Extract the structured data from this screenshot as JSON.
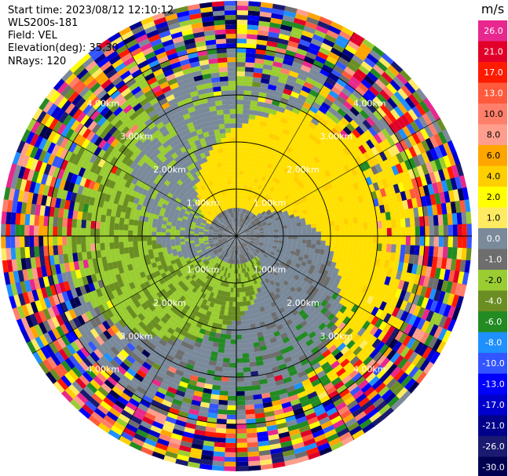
{
  "header": {
    "start_time": "Start time: 2023/08/12 12:10:12",
    "instrument": "WLS200s-181",
    "field": "Field: VEL",
    "elevation": "Elevation(deg): 35.30",
    "nrays": "NRays: 120"
  },
  "colorbar": {
    "unit": "m/s",
    "levels": [
      {
        "label": "26.0",
        "color": "#e8288f"
      },
      {
        "label": "21.0",
        "color": "#e0002a"
      },
      {
        "label": "17.0",
        "color": "#ff1a00"
      },
      {
        "label": "13.0",
        "color": "#ff5a3c"
      },
      {
        "label": "10.0",
        "color": "#ff7f6a"
      },
      {
        "label": "8.0",
        "color": "#ff9e8c"
      },
      {
        "label": "6.0",
        "color": "#ffa500"
      },
      {
        "label": "4.0",
        "color": "#ffcf00"
      },
      {
        "label": "2.0",
        "color": "#ffff00"
      },
      {
        "label": "1.0",
        "color": "#ffea60"
      },
      {
        "label": "0.0",
        "color": "#7a8a9a"
      },
      {
        "label": "-1.0",
        "color": "#6e6e6e"
      },
      {
        "label": "-2.0",
        "color": "#9acd32"
      },
      {
        "label": "-4.0",
        "color": "#6b8e23"
      },
      {
        "label": "-6.0",
        "color": "#228b22"
      },
      {
        "label": "-8.0",
        "color": "#1e90ff"
      },
      {
        "label": "-10.0",
        "color": "#3355ff"
      },
      {
        "label": "-13.0",
        "color": "#0000ff"
      },
      {
        "label": "-17.0",
        "color": "#0000cd"
      },
      {
        "label": "-21.0",
        "color": "#00008b"
      },
      {
        "label": "-26.0",
        "color": "#1a1a70"
      },
      {
        "label": "-30.0",
        "color": "#000050"
      }
    ]
  },
  "chart_data": {
    "type": "heatmap",
    "projection": "polar-ppi",
    "nrays": 120,
    "range_rings_km": [
      1.0,
      2.0,
      3.0,
      4.0
    ],
    "range_labels": [
      "1.00km",
      "2.00km",
      "3.00km",
      "4.00km"
    ],
    "outer_noise_from_km": 4.0,
    "regions": [
      {
        "description": "toward (positive) yellow region, north/west",
        "value": 2.0
      },
      {
        "description": "near-zero gray region, east/southwest",
        "value": 0.0
      },
      {
        "description": "away (negative) green region, south/southeast",
        "value": -2.0
      }
    ]
  }
}
